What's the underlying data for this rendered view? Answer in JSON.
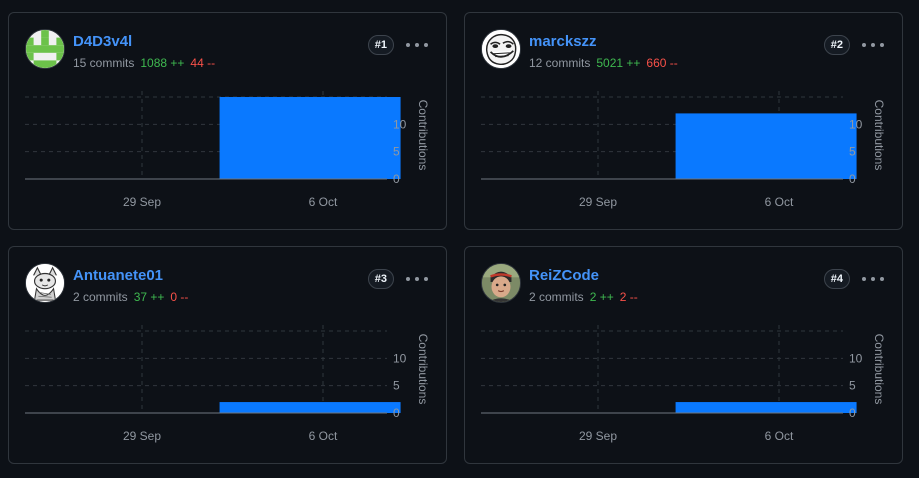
{
  "colors": {
    "bar": "#0a79ff",
    "grid": "#30363d",
    "axis_text": "#9198a1",
    "additions": "#3fb950",
    "deletions": "#f85149",
    "link": "#4493f8"
  },
  "contributors": [
    {
      "rank": "#1",
      "username": "D4D3v4l",
      "commits": "15 commits",
      "additions": "1088 ++",
      "deletions": "44 --",
      "avatar": "pixel-identicon"
    },
    {
      "rank": "#2",
      "username": "marckszz",
      "commits": "12 commits",
      "additions": "5021 ++",
      "deletions": "660 --",
      "avatar": "troll-face"
    },
    {
      "rank": "#3",
      "username": "Antuanete01",
      "commits": "2 commits",
      "additions": "37 ++",
      "deletions": "0 --",
      "avatar": "sketch-animal"
    },
    {
      "rank": "#4",
      "username": "ReiZCode",
      "commits": "2 commits",
      "additions": "2 ++",
      "deletions": "2 --",
      "avatar": "photo-person"
    }
  ],
  "chart_data": [
    {
      "type": "area",
      "x_ticks": [
        "29 Sep",
        "6 Oct"
      ],
      "ylabel": "Contributions",
      "y_ticks": [
        0,
        5,
        10
      ],
      "ylim": [
        0,
        15
      ],
      "grid": true,
      "series": [
        {
          "x_range": [
            "2 Oct",
            "9 Oct"
          ],
          "values": [
            15
          ]
        }
      ]
    },
    {
      "type": "area",
      "x_ticks": [
        "29 Sep",
        "6 Oct"
      ],
      "ylabel": "Contributions",
      "y_ticks": [
        0,
        5,
        10
      ],
      "ylim": [
        0,
        15
      ],
      "grid": true,
      "series": [
        {
          "x_range": [
            "2 Oct",
            "9 Oct"
          ],
          "values": [
            12
          ]
        }
      ]
    },
    {
      "type": "area",
      "x_ticks": [
        "29 Sep",
        "6 Oct"
      ],
      "ylabel": "Contributions",
      "y_ticks": [
        0,
        5,
        10
      ],
      "ylim": [
        0,
        15
      ],
      "grid": true,
      "series": [
        {
          "x_range": [
            "2 Oct",
            "9 Oct"
          ],
          "values": [
            2
          ]
        }
      ]
    },
    {
      "type": "area",
      "x_ticks": [
        "29 Sep",
        "6 Oct"
      ],
      "ylabel": "Contributions",
      "y_ticks": [
        0,
        5,
        10
      ],
      "ylim": [
        0,
        15
      ],
      "grid": true,
      "series": [
        {
          "x_range": [
            "2 Oct",
            "9 Oct"
          ],
          "values": [
            2
          ]
        }
      ]
    }
  ]
}
